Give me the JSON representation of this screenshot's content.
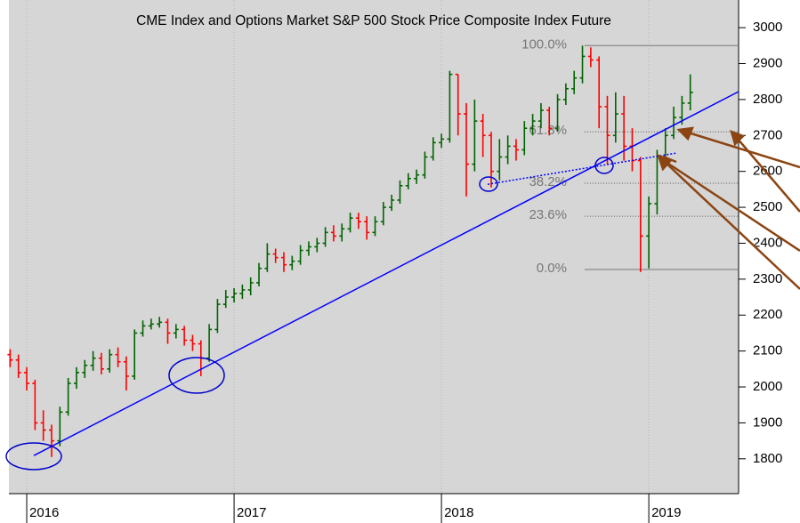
{
  "chart_data": {
    "type": "ohlc",
    "title": "CME Index and Options Market S&P 500 Stock Price Composite Index Future",
    "x": [
      2015.92,
      2015.96,
      2016.0,
      2016.04,
      2016.08,
      2016.12,
      2016.16,
      2016.2,
      2016.24,
      2016.28,
      2016.32,
      2016.36,
      2016.4,
      2016.44,
      2016.48,
      2016.52,
      2016.56,
      2016.6,
      2016.64,
      2016.68,
      2016.72,
      2016.76,
      2016.8,
      2016.84,
      2016.88,
      2016.92,
      2016.96,
      2017.0,
      2017.04,
      2017.08,
      2017.12,
      2017.16,
      2017.2,
      2017.24,
      2017.28,
      2017.32,
      2017.36,
      2017.4,
      2017.44,
      2017.48,
      2017.52,
      2017.56,
      2017.6,
      2017.64,
      2017.68,
      2017.72,
      2017.76,
      2017.8,
      2017.84,
      2017.88,
      2017.92,
      2017.96,
      2018.0,
      2018.04,
      2018.08,
      2018.12,
      2018.16,
      2018.2,
      2018.24,
      2018.28,
      2018.32,
      2018.36,
      2018.4,
      2018.44,
      2018.48,
      2018.52,
      2018.56,
      2018.6,
      2018.64,
      2018.68,
      2018.72,
      2018.76,
      2018.8,
      2018.84,
      2018.88,
      2018.92,
      2018.96,
      2019.0,
      2019.04,
      2019.08,
      2019.12,
      2019.16,
      2019.2
    ],
    "open": [
      2090,
      2075,
      2040,
      2010,
      1900,
      1880,
      1850,
      1930,
      2010,
      2040,
      2060,
      2080,
      2050,
      2090,
      2070,
      2030,
      2150,
      2170,
      2175,
      2180,
      2150,
      2160,
      2130,
      2120,
      2080,
      2160,
      2230,
      2250,
      2260,
      2270,
      2290,
      2330,
      2370,
      2360,
      2340,
      2350,
      2380,
      2390,
      2400,
      2430,
      2420,
      2440,
      2470,
      2460,
      2430,
      2460,
      2500,
      2520,
      2560,
      2580,
      2590,
      2640,
      2680,
      2690,
      2870,
      2760,
      2620,
      2740,
      2700,
      2600,
      2640,
      2670,
      2660,
      2720,
      2740,
      2770,
      2720,
      2800,
      2830,
      2860,
      2920,
      2910,
      2780,
      2700,
      2760,
      2670,
      2630,
      2420,
      2510,
      2640,
      2700,
      2750,
      2790
    ],
    "high": [
      2105,
      2090,
      2055,
      2020,
      1935,
      1895,
      1945,
      2025,
      2055,
      2075,
      2100,
      2095,
      2105,
      2110,
      2085,
      2160,
      2185,
      2190,
      2195,
      2190,
      2175,
      2170,
      2145,
      2130,
      2175,
      2245,
      2270,
      2275,
      2285,
      2305,
      2345,
      2400,
      2385,
      2375,
      2365,
      2395,
      2405,
      2415,
      2445,
      2450,
      2455,
      2485,
      2485,
      2475,
      2475,
      2515,
      2535,
      2575,
      2595,
      2605,
      2655,
      2695,
      2705,
      2880,
      2870,
      2790,
      2800,
      2760,
      2710,
      2690,
      2700,
      2690,
      2740,
      2760,
      2790,
      2780,
      2815,
      2845,
      2880,
      2950,
      2945,
      2920,
      2810,
      2820,
      2810,
      2720,
      2640,
      2530,
      2660,
      2720,
      2780,
      2810,
      2870
    ],
    "low": [
      2055,
      2025,
      1990,
      1880,
      1850,
      1805,
      1835,
      1920,
      1995,
      2025,
      2045,
      2035,
      2040,
      2055,
      1990,
      2020,
      2140,
      2160,
      2165,
      2120,
      2135,
      2115,
      2100,
      2030,
      2070,
      2150,
      2220,
      2235,
      2245,
      2255,
      2280,
      2320,
      2345,
      2320,
      2325,
      2340,
      2365,
      2375,
      2390,
      2405,
      2405,
      2430,
      2440,
      2410,
      2420,
      2450,
      2490,
      2510,
      2550,
      2565,
      2580,
      2630,
      2665,
      2680,
      2700,
      2530,
      2600,
      2640,
      2555,
      2575,
      2620,
      2630,
      2645,
      2700,
      2720,
      2700,
      2710,
      2785,
      2815,
      2845,
      2890,
      2720,
      2620,
      2680,
      2630,
      2600,
      2320,
      2330,
      2480,
      2620,
      2690,
      2730,
      2770
    ],
    "close": [
      2075,
      2040,
      2010,
      1900,
      1880,
      1850,
      1930,
      2010,
      2040,
      2060,
      2080,
      2050,
      2090,
      2070,
      2030,
      2150,
      2170,
      2175,
      2180,
      2150,
      2160,
      2130,
      2120,
      2080,
      2160,
      2230,
      2250,
      2260,
      2270,
      2290,
      2330,
      2370,
      2360,
      2340,
      2350,
      2380,
      2390,
      2400,
      2430,
      2420,
      2440,
      2470,
      2460,
      2430,
      2460,
      2500,
      2520,
      2560,
      2580,
      2590,
      2640,
      2680,
      2690,
      2870,
      2760,
      2620,
      2740,
      2700,
      2600,
      2640,
      2670,
      2660,
      2720,
      2740,
      2770,
      2720,
      2800,
      2830,
      2860,
      2920,
      2910,
      2780,
      2700,
      2760,
      2670,
      2630,
      2420,
      2510,
      2640,
      2700,
      2750,
      2790,
      2820
    ],
    "up_color": "#006400",
    "down_color": "#ff0000",
    "xlim": [
      2015.914,
      2019.433
    ],
    "xticks": [
      2016,
      2017,
      2018,
      2019
    ],
    "ylim": [
      1703,
      3077
    ],
    "yticks": [
      1800,
      1900,
      2000,
      2100,
      2200,
      2300,
      2400,
      2500,
      2600,
      2700,
      2800,
      2900,
      3000
    ],
    "fib_x": 2018.69,
    "fibonacci": [
      {
        "label": "100.0%",
        "value": 2950
      },
      {
        "label": "61.8%",
        "value": 2710
      },
      {
        "label": "38.2%",
        "value": 2567
      },
      {
        "label": "23.6%",
        "value": 2475
      },
      {
        "label": "0.0%",
        "value": 2327
      }
    ],
    "trendline": {
      "x": [
        2016.034,
        2019.433
      ],
      "y": [
        1809,
        2822
      ],
      "color": "#0000ff"
    },
    "support_line": {
      "x": [
        2018.223,
        2019.133
      ],
      "y": [
        2564,
        2651
      ],
      "color": "#0000ff"
    }
  }
}
